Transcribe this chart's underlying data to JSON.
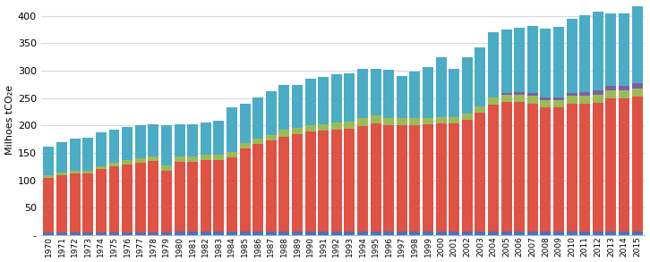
{
  "years": [
    1970,
    1971,
    1972,
    1973,
    1974,
    1975,
    1976,
    1977,
    1978,
    1979,
    1980,
    1981,
    1982,
    1983,
    1984,
    1985,
    1986,
    1987,
    1988,
    1989,
    1990,
    1991,
    1992,
    1993,
    1994,
    1995,
    1996,
    1997,
    1998,
    1999,
    2000,
    2001,
    2002,
    2003,
    2004,
    2005,
    2006,
    2007,
    2008,
    2009,
    2010,
    2011,
    2012,
    2013,
    2014,
    2015
  ],
  "blue": [
    5,
    5,
    5,
    5,
    5,
    5,
    5,
    5,
    5,
    5,
    6,
    6,
    6,
    6,
    6,
    6,
    6,
    6,
    6,
    6,
    6,
    6,
    6,
    6,
    6,
    6,
    6,
    6,
    6,
    6,
    6,
    6,
    6,
    6,
    6,
    6,
    6,
    6,
    6,
    6,
    6,
    6,
    6,
    6,
    6,
    6
  ],
  "red": [
    100,
    104,
    107,
    108,
    115,
    120,
    124,
    127,
    130,
    113,
    128,
    128,
    131,
    131,
    136,
    152,
    161,
    167,
    174,
    178,
    183,
    185,
    187,
    189,
    193,
    198,
    195,
    195,
    195,
    196,
    198,
    198,
    204,
    217,
    232,
    237,
    237,
    234,
    227,
    228,
    234,
    234,
    236,
    244,
    244,
    247
  ],
  "green": [
    5,
    5,
    5,
    5,
    5,
    7,
    8,
    8,
    8,
    10,
    10,
    10,
    10,
    10,
    10,
    10,
    10,
    10,
    12,
    12,
    12,
    12,
    13,
    13,
    14,
    14,
    13,
    12,
    12,
    12,
    12,
    12,
    12,
    12,
    13,
    13,
    13,
    14,
    13,
    13,
    14,
    14,
    14,
    15,
    15,
    15
  ],
  "purple": [
    0,
    0,
    0,
    0,
    0,
    0,
    0,
    0,
    0,
    0,
    0,
    0,
    0,
    0,
    0,
    0,
    0,
    0,
    0,
    0,
    0,
    0,
    0,
    0,
    0,
    0,
    0,
    0,
    0,
    0,
    0,
    0,
    0,
    0,
    0,
    3,
    5,
    6,
    5,
    5,
    6,
    7,
    8,
    8,
    8,
    9
  ],
  "cyan": [
    52,
    55,
    60,
    60,
    62,
    60,
    60,
    60,
    60,
    72,
    58,
    58,
    58,
    62,
    82,
    72,
    75,
    80,
    82,
    78,
    84,
    86,
    87,
    87,
    91,
    86,
    88,
    78,
    85,
    93,
    108,
    88,
    102,
    108,
    120,
    117,
    117,
    121,
    126,
    128,
    135,
    140,
    144,
    132,
    132,
    140
  ],
  "colors": [
    "#4472c4",
    "#e05243",
    "#9bbb59",
    "#7f60a0",
    "#4bacc6"
  ],
  "ylabel": "Milhoes tCO₂e",
  "ylim": [
    0,
    420
  ],
  "yticks": [
    0,
    50,
    100,
    150,
    200,
    250,
    300,
    350,
    400
  ],
  "yticklabels": [
    "-",
    "50",
    "100",
    "150",
    "200",
    "250",
    "300",
    "350",
    "400"
  ],
  "grid_color": "#d8d8d8"
}
